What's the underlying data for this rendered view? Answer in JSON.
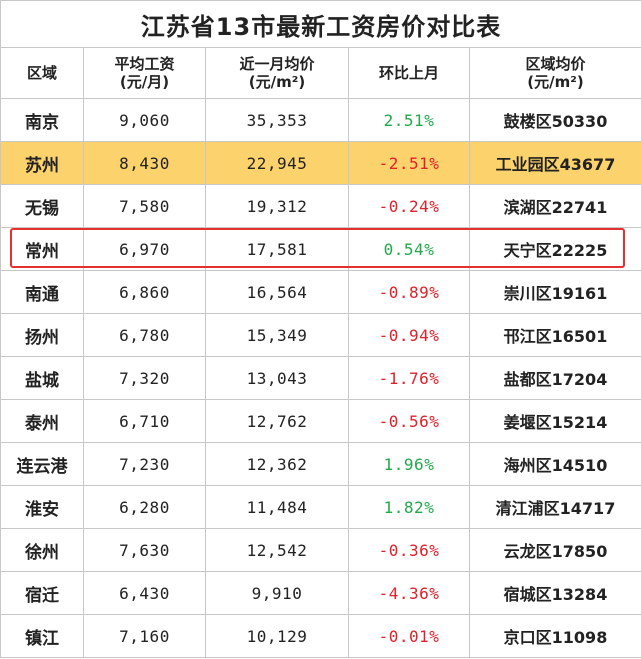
{
  "title": "江苏省13市最新工资房价对比表",
  "headers": {
    "region": "区域",
    "wage_l1": "平均工资",
    "wage_l2": "(元/月)",
    "price_l1": "近一月均价",
    "price_l2": "(元/m²)",
    "mom": "环比上月",
    "area_l1": "区域均价",
    "area_l2": "(元/m²)"
  },
  "colors": {
    "positive": "#22a84a",
    "negative": "#e0202a",
    "highlight": "#fbd26b",
    "box": "#e53030"
  },
  "rows": [
    {
      "city": "南京",
      "wage": "9,060",
      "price": "35,353",
      "mom": "2.51%",
      "area": "鼓楼区50330"
    },
    {
      "city": "苏州",
      "wage": "8,430",
      "price": "22,945",
      "mom": "-2.51%",
      "area": "工业园区43677"
    },
    {
      "city": "无锡",
      "wage": "7,580",
      "price": "19,312",
      "mom": "-0.24%",
      "area": "滨湖区22741"
    },
    {
      "city": "常州",
      "wage": "6,970",
      "price": "17,581",
      "mom": "0.54%",
      "area": "天宁区22225"
    },
    {
      "city": "南通",
      "wage": "6,860",
      "price": "16,564",
      "mom": "-0.89%",
      "area": "崇川区19161"
    },
    {
      "city": "扬州",
      "wage": "6,780",
      "price": "15,349",
      "mom": "-0.94%",
      "area": "邗江区16501"
    },
    {
      "city": "盐城",
      "wage": "7,320",
      "price": "13,043",
      "mom": "-1.76%",
      "area": "盐都区17204"
    },
    {
      "city": "泰州",
      "wage": "6,710",
      "price": "12,762",
      "mom": "-0.56%",
      "area": "姜堰区15214"
    },
    {
      "city": "连云港",
      "wage": "7,230",
      "price": "12,362",
      "mom": "1.96%",
      "area": "海州区14510"
    },
    {
      "city": "淮安",
      "wage": "6,280",
      "price": "11,484",
      "mom": "1.82%",
      "area": "清江浦区14717"
    },
    {
      "city": "徐州",
      "wage": "7,630",
      "price": "12,542",
      "mom": "-0.36%",
      "area": "云龙区17850"
    },
    {
      "city": "宿迁",
      "wage": "6,430",
      "price": "9,910",
      "mom": "-4.36%",
      "area": "宿城区13284"
    },
    {
      "city": "镇江",
      "wage": "7,160",
      "price": "10,129",
      "mom": "-0.01%",
      "area": "京口区11098"
    }
  ]
}
